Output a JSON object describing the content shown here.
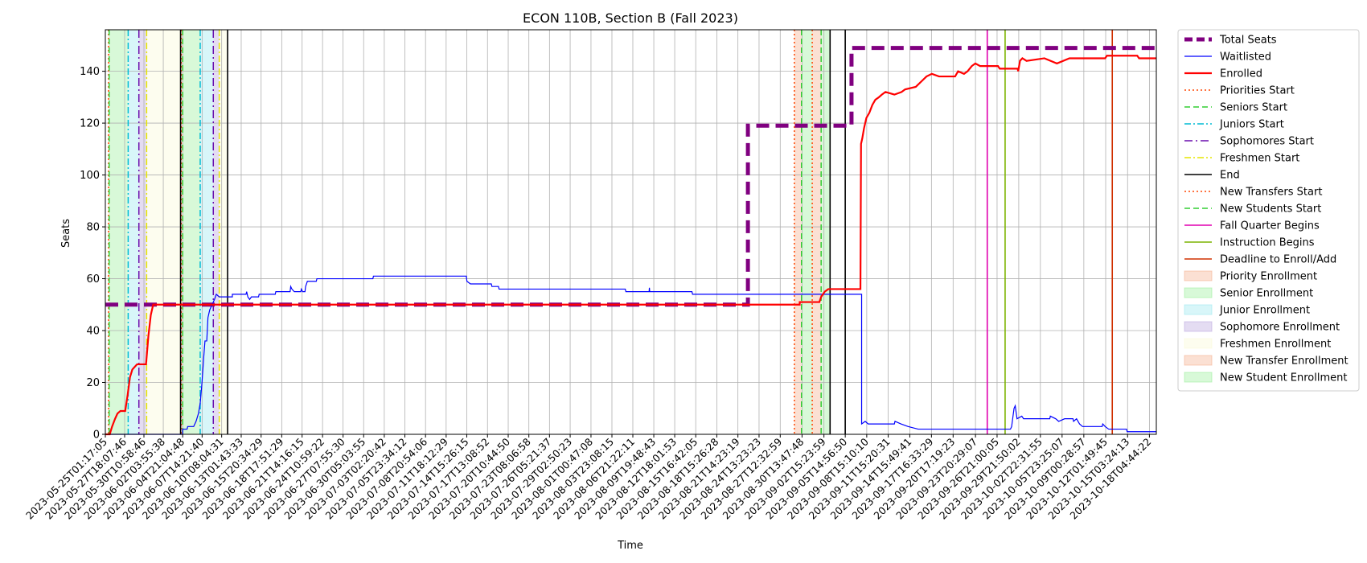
{
  "chart_data": {
    "type": "line",
    "title": "ECON 110B, Section B (Fall 2023)",
    "xlabel": "Time",
    "ylabel": "Seats",
    "x_start": "2023-05-25T01:17:05",
    "x_end": "2023-10-19T04:00:00",
    "ylim": [
      0,
      156
    ],
    "y_ticks": [
      0,
      20,
      40,
      60,
      80,
      100,
      120,
      140
    ],
    "grid": true,
    "legend_position": "outside-right",
    "x_tick_labels": [
      "2023-05-25T01:17:05",
      "2023-05-27T18:07:46",
      "2023-05-30T10:58:46",
      "2023-06-02T03:55:38",
      "2023-06-04T21:04:48",
      "2023-06-07T14:21:40",
      "2023-06-10T08:04:31",
      "2023-06-13T01:43:33",
      "2023-06-15T20:34:29",
      "2023-06-18T17:51:29",
      "2023-06-21T14:16:15",
      "2023-06-24T10:59:22",
      "2023-06-27T07:55:30",
      "2023-06-30T05:03:55",
      "2023-07-03T02:20:42",
      "2023-07-05T23:34:12",
      "2023-07-08T20:54:06",
      "2023-07-11T18:12:29",
      "2023-07-14T15:26:15",
      "2023-07-17T13:08:52",
      "2023-07-20T10:44:50",
      "2023-07-23T08:06:58",
      "2023-07-26T05:21:37",
      "2023-07-29T02:50:23",
      "2023-08-01T00:47:08",
      "2023-08-03T23:08:15",
      "2023-08-06T21:22:11",
      "2023-08-09T19:48:43",
      "2023-08-12T18:01:53",
      "2023-08-15T16:42:05",
      "2023-08-18T15:26:28",
      "2023-08-21T14:23:19",
      "2023-08-24T13:23:23",
      "2023-08-27T12:32:59",
      "2023-08-30T13:47:48",
      "2023-09-02T15:23:59",
      "2023-09-05T14:56:50",
      "2023-09-08T15:10:10",
      "2023-09-11T15:20:31",
      "2023-09-14T15:49:41",
      "2023-09-17T16:33:29",
      "2023-09-20T17:19:23",
      "2023-09-23T20:29:07",
      "2023-09-26T21:00:05",
      "2023-09-29T21:50:02",
      "2023-10-02T22:31:55",
      "2023-10-05T23:25:07",
      "2023-10-09T00:28:57",
      "2023-10-12T01:49:45",
      "2023-10-15T03:24:13",
      "2023-10-18T04:44:22"
    ],
    "series": [
      {
        "name": "Total Seats",
        "color": "#800080",
        "style": "dashed-thick",
        "points": [
          [
            "2023-05-25T01:17:05",
            50
          ],
          [
            "2023-08-23T00:00:00",
            50
          ],
          [
            "2023-08-23T00:00:00",
            119
          ],
          [
            "2023-09-06T12:00:00",
            119
          ],
          [
            "2023-09-06T12:00:00",
            149
          ],
          [
            "2023-10-19T04:00:00",
            149
          ]
        ]
      },
      {
        "name": "Waitlisted",
        "color": "#0000ff",
        "style": "solid-thin",
        "points": [
          [
            "2023-05-25T01:17:05",
            0
          ],
          [
            "2023-06-04T21:00:00",
            0
          ],
          [
            "2023-06-04T21:00:00",
            2
          ],
          [
            "2023-06-05T12:00:00",
            2
          ],
          [
            "2023-06-05T14:00:00",
            3
          ],
          [
            "2023-06-06T10:00:00",
            3
          ],
          [
            "2023-06-06T18:00:00",
            5
          ],
          [
            "2023-06-07T02:00:00",
            8
          ],
          [
            "2023-06-07T08:00:00",
            12
          ],
          [
            "2023-06-07T14:00:00",
            20
          ],
          [
            "2023-06-07T20:00:00",
            30
          ],
          [
            "2023-06-08T00:00:00",
            36
          ],
          [
            "2023-06-08T06:00:00",
            36
          ],
          [
            "2023-06-08T10:00:00",
            45
          ],
          [
            "2023-06-08T16:00:00",
            48
          ],
          [
            "2023-06-09T00:00:00",
            50
          ],
          [
            "2023-06-09T08:00:00",
            52
          ],
          [
            "2023-06-09T14:00:00",
            54
          ],
          [
            "2023-06-10T00:00:00",
            53
          ],
          [
            "2023-06-11T20:00:00",
            53
          ],
          [
            "2023-06-11T20:00:00",
            54
          ],
          [
            "2023-06-13T18:00:00",
            54
          ],
          [
            "2023-06-13T20:00:00",
            55
          ],
          [
            "2023-06-14T00:00:00",
            53
          ],
          [
            "2023-06-14T06:00:00",
            52
          ],
          [
            "2023-06-14T12:00:00",
            53
          ],
          [
            "2023-06-15T12:00:00",
            53
          ],
          [
            "2023-06-15T14:00:00",
            54
          ],
          [
            "2023-06-17T20:00:00",
            54
          ],
          [
            "2023-06-17T22:00:00",
            55
          ],
          [
            "2023-06-19T22:00:00",
            55
          ],
          [
            "2023-06-20T00:00:00",
            57
          ],
          [
            "2023-06-20T04:00:00",
            56
          ],
          [
            "2023-06-20T12:00:00",
            55
          ],
          [
            "2023-06-21T10:00:00",
            55
          ],
          [
            "2023-06-21T12:00:00",
            56
          ],
          [
            "2023-06-21T16:00:00",
            55
          ],
          [
            "2023-06-22T00:00:00",
            55
          ],
          [
            "2023-06-22T02:00:00",
            57
          ],
          [
            "2023-06-22T08:00:00",
            59
          ],
          [
            "2023-06-23T14:00:00",
            59
          ],
          [
            "2023-06-23T16:00:00",
            60
          ],
          [
            "2023-07-01T12:00:00",
            60
          ],
          [
            "2023-07-01T14:00:00",
            61
          ],
          [
            "2023-07-14T14:00:00",
            61
          ],
          [
            "2023-07-14T16:00:00",
            59
          ],
          [
            "2023-07-15T04:00:00",
            58
          ],
          [
            "2023-07-18T02:00:00",
            58
          ],
          [
            "2023-07-18T04:00:00",
            57
          ],
          [
            "2023-07-19T02:00:00",
            57
          ],
          [
            "2023-07-19T04:00:00",
            56
          ],
          [
            "2023-08-05T20:00:00",
            56
          ],
          [
            "2023-08-05T22:00:00",
            55
          ],
          [
            "2023-08-09T04:00:00",
            55
          ],
          [
            "2023-08-09T05:00:00",
            56.5
          ],
          [
            "2023-08-09T06:00:00",
            55
          ],
          [
            "2023-08-15T04:00:00",
            55
          ],
          [
            "2023-08-15T06:00:00",
            54
          ],
          [
            "2023-09-07T22:00:00",
            54
          ],
          [
            "2023-09-07T22:00:00",
            4
          ],
          [
            "2023-09-08T10:00:00",
            5
          ],
          [
            "2023-09-08T20:00:00",
            4
          ],
          [
            "2023-09-12T12:00:00",
            4
          ],
          [
            "2023-09-12T14:00:00",
            5
          ],
          [
            "2023-09-13T10:00:00",
            4
          ],
          [
            "2023-09-14T10:00:00",
            3
          ],
          [
            "2023-09-15T20:00:00",
            2
          ],
          [
            "2023-09-28T18:00:00",
            2
          ],
          [
            "2023-09-28T22:00:00",
            3
          ],
          [
            "2023-09-29T06:00:00",
            10
          ],
          [
            "2023-09-29T10:00:00",
            11
          ],
          [
            "2023-09-29T16:00:00",
            6
          ],
          [
            "2023-09-30T08:00:00",
            7
          ],
          [
            "2023-09-30T14:00:00",
            6
          ],
          [
            "2023-10-04T06:00:00",
            6
          ],
          [
            "2023-10-04T08:00:00",
            7
          ],
          [
            "2023-10-05T02:00:00",
            6
          ],
          [
            "2023-10-05T12:00:00",
            5
          ],
          [
            "2023-10-06T08:00:00",
            6
          ],
          [
            "2023-10-07T12:00:00",
            6
          ],
          [
            "2023-10-07T14:00:00",
            5
          ],
          [
            "2023-10-08T00:00:00",
            6
          ],
          [
            "2023-10-08T10:00:00",
            4
          ],
          [
            "2023-10-08T20:00:00",
            3
          ],
          [
            "2023-10-11T14:00:00",
            3
          ],
          [
            "2023-10-11T16:00:00",
            4
          ],
          [
            "2023-10-12T00:00:00",
            3
          ],
          [
            "2023-10-12T12:00:00",
            2
          ],
          [
            "2023-10-15T00:00:00",
            2
          ],
          [
            "2023-10-15T02:00:00",
            1
          ],
          [
            "2023-10-19T04:00:00",
            1
          ]
        ]
      },
      {
        "name": "Enrolled",
        "color": "#ff0000",
        "style": "solid-thick",
        "points": [
          [
            "2023-05-25T01:17:05",
            0
          ],
          [
            "2023-05-25T16:00:00",
            0
          ],
          [
            "2023-05-26T00:00:00",
            3
          ],
          [
            "2023-05-26T10:00:00",
            6
          ],
          [
            "2023-05-26T18:00:00",
            8
          ],
          [
            "2023-05-27T04:00:00",
            9
          ],
          [
            "2023-05-27T20:00:00",
            9
          ],
          [
            "2023-05-28T04:00:00",
            15
          ],
          [
            "2023-05-28T12:00:00",
            22
          ],
          [
            "2023-05-28T20:00:00",
            25
          ],
          [
            "2023-05-29T04:00:00",
            26
          ],
          [
            "2023-05-29T12:00:00",
            27
          ],
          [
            "2023-05-30T18:00:00",
            27
          ],
          [
            "2023-05-31T02:00:00",
            38
          ],
          [
            "2023-05-31T10:00:00",
            46
          ],
          [
            "2023-05-31T18:00:00",
            50
          ],
          [
            "2023-08-30T06:00:00",
            50
          ],
          [
            "2023-08-30T06:00:00",
            51
          ],
          [
            "2023-09-02T00:00:00",
            51
          ],
          [
            "2023-09-02T06:00:00",
            53
          ],
          [
            "2023-09-02T18:00:00",
            55
          ],
          [
            "2023-09-03T06:00:00",
            56
          ],
          [
            "2023-09-07T18:00:00",
            56
          ],
          [
            "2023-09-07T20:00:00",
            112
          ],
          [
            "2023-09-08T00:00:00",
            114
          ],
          [
            "2023-09-08T06:00:00",
            118
          ],
          [
            "2023-09-08T14:00:00",
            122
          ],
          [
            "2023-09-09T00:00:00",
            124
          ],
          [
            "2023-09-09T10:00:00",
            127
          ],
          [
            "2023-09-09T20:00:00",
            129
          ],
          [
            "2023-09-10T08:00:00",
            130
          ],
          [
            "2023-09-10T18:00:00",
            131
          ],
          [
            "2023-09-11T06:00:00",
            132
          ],
          [
            "2023-09-12T12:00:00",
            131
          ],
          [
            "2023-09-13T12:00:00",
            132
          ],
          [
            "2023-09-14T00:00:00",
            133
          ],
          [
            "2023-09-15T12:00:00",
            134
          ],
          [
            "2023-09-16T06:00:00",
            136
          ],
          [
            "2023-09-17T00:00:00",
            138
          ],
          [
            "2023-09-17T18:00:00",
            139
          ],
          [
            "2023-09-18T18:00:00",
            138
          ],
          [
            "2023-09-21T00:00:00",
            138
          ],
          [
            "2023-09-21T10:00:00",
            140
          ],
          [
            "2023-09-22T06:00:00",
            139
          ],
          [
            "2023-09-22T18:00:00",
            140
          ],
          [
            "2023-09-23T08:00:00",
            142
          ],
          [
            "2023-09-23T20:00:00",
            143
          ],
          [
            "2023-09-24T12:00:00",
            142
          ],
          [
            "2023-09-27T00:00:00",
            142
          ],
          [
            "2023-09-27T06:00:00",
            141
          ],
          [
            "2023-09-29T18:00:00",
            141
          ],
          [
            "2023-09-29T20:00:00",
            140
          ],
          [
            "2023-09-30T02:00:00",
            144
          ],
          [
            "2023-09-30T10:00:00",
            145
          ],
          [
            "2023-10-01T00:00:00",
            144
          ],
          [
            "2023-10-03T12:00:00",
            145
          ],
          [
            "2023-10-05T06:00:00",
            143
          ],
          [
            "2023-10-07T00:00:00",
            145
          ],
          [
            "2023-10-12T00:00:00",
            145
          ],
          [
            "2023-10-12T06:00:00",
            146
          ],
          [
            "2023-10-16T12:00:00",
            146
          ],
          [
            "2023-10-16T18:00:00",
            145
          ],
          [
            "2023-10-19T04:00:00",
            145
          ]
        ]
      }
    ],
    "vertical_lines": [
      {
        "name": "Priorities Start",
        "color": "#ff4500",
        "dash": "dotted",
        "dates": [
          "2023-05-25T12:00:00",
          "2023-06-04T16:00:00",
          "2023-08-29T12:00:00"
        ]
      },
      {
        "name": "Seniors Start",
        "color": "#32cd32",
        "dash": "dashed",
        "dates": [
          "2023-05-25T14:00:00",
          "2023-06-04T21:04:48",
          "2023-08-30T12:00:00"
        ]
      },
      {
        "name": "Juniors Start",
        "color": "#00bcd4",
        "dash": "dashdot",
        "dates": [
          "2023-05-28T06:00:00",
          "2023-06-07T08:00:00"
        ]
      },
      {
        "name": "Sophomores Start",
        "color": "#6a0dad",
        "dash": "dashdot-long",
        "dates": [
          "2023-05-29T18:00:00",
          "2023-06-09T04:00:00"
        ]
      },
      {
        "name": "Freshmen Start",
        "color": "#e6e600",
        "dash": "dashdot",
        "dates": [
          "2023-05-30T20:00:00",
          "2023-06-10T00:00:00"
        ]
      },
      {
        "name": "End",
        "color": "#000000",
        "dash": "solid",
        "dates": [
          "2023-06-04T14:00:00",
          "2023-06-11T04:00:00",
          "2023-09-03T12:00:00",
          "2023-09-05T14:56:50"
        ]
      },
      {
        "name": "New Transfers Start",
        "color": "#ff4500",
        "dash": "dotted",
        "dates": [
          "2023-09-01T00:00:00"
        ]
      },
      {
        "name": "New Students Start",
        "color": "#32cd32",
        "dash": "dashed",
        "dates": [
          "2023-09-02T06:00:00"
        ]
      },
      {
        "name": "Fall Quarter Begins",
        "color": "#e000b0",
        "dash": "solid",
        "dates": [
          "2023-09-25T12:00:00"
        ]
      },
      {
        "name": "Instruction Begins",
        "color": "#7cb300",
        "dash": "solid",
        "dates": [
          "2023-09-28T00:00:00"
        ]
      },
      {
        "name": "Deadline to Enroll/Add",
        "color": "#d03000",
        "dash": "solid",
        "dates": [
          "2023-10-13T00:00:00"
        ]
      }
    ],
    "shaded_periods": [
      {
        "name": "Priority Enrollment",
        "color": "#f4a582",
        "ranges": [
          [
            "2023-05-25T12:00:00",
            "2023-05-25T14:00:00"
          ],
          [
            "2023-06-04T16:00:00",
            "2023-06-04T21:04:48"
          ],
          [
            "2023-08-29T12:00:00",
            "2023-08-30T12:00:00"
          ]
        ]
      },
      {
        "name": "Senior Enrollment",
        "color": "#90ee90",
        "ranges": [
          [
            "2023-05-25T14:00:00",
            "2023-05-28T06:00:00"
          ],
          [
            "2023-06-04T21:04:48",
            "2023-06-07T08:00:00"
          ],
          [
            "2023-08-30T12:00:00",
            "2023-09-01T00:00:00"
          ]
        ]
      },
      {
        "name": "Junior Enrollment",
        "color": "#8ee5ee",
        "ranges": [
          [
            "2023-05-28T06:00:00",
            "2023-05-29T18:00:00"
          ],
          [
            "2023-06-07T08:00:00",
            "2023-06-09T04:00:00"
          ]
        ]
      },
      {
        "name": "Sophomore Enrollment",
        "color": "#b19cd9",
        "ranges": [
          [
            "2023-05-29T18:00:00",
            "2023-05-30T20:00:00"
          ],
          [
            "2023-06-09T04:00:00",
            "2023-06-10T00:00:00"
          ]
        ]
      },
      {
        "name": "Freshmen Enrollment",
        "color": "#fafad2",
        "ranges": [
          [
            "2023-05-30T20:00:00",
            "2023-06-04T14:00:00"
          ],
          [
            "2023-06-10T00:00:00",
            "2023-06-11T04:00:00"
          ]
        ]
      },
      {
        "name": "New Transfer Enrollment",
        "color": "#f4a582",
        "ranges": [
          [
            "2023-09-01T00:00:00",
            "2023-09-02T06:00:00"
          ]
        ]
      },
      {
        "name": "New Student Enrollment",
        "color": "#90ee90",
        "ranges": [
          [
            "2023-09-02T06:00:00",
            "2023-09-03T12:00:00"
          ]
        ]
      }
    ]
  }
}
